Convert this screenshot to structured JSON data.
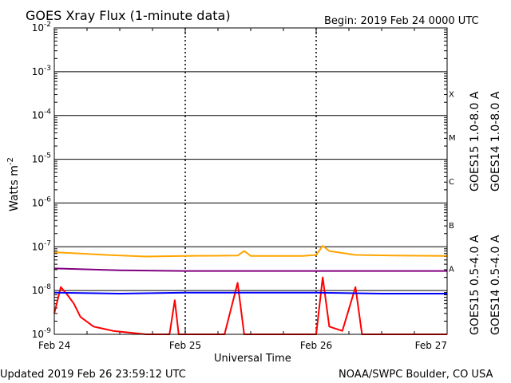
{
  "header": {
    "title": "GOES Xray Flux (1-minute data)",
    "begin_label": "Begin:  2019 Feb 24 0000 UTC"
  },
  "footer": {
    "updated": "Updated 2019 Feb 26 23:59:12 UTC",
    "credit": "NOAA/SWPC Boulder, CO USA"
  },
  "chart_data": {
    "type": "line",
    "title": "GOES Xray Flux (1-minute data)",
    "xlabel": "Universal Time",
    "ylabel": "Watts m",
    "ylabel_sup": "-2",
    "scale": "log",
    "ylim": [
      1e-09,
      0.01
    ],
    "xlim": [
      "Feb 24",
      "Feb 27"
    ],
    "x_ticks": [
      {
        "day": 0,
        "label": "Feb 24"
      },
      {
        "day": 1,
        "label": "Feb 25"
      },
      {
        "day": 2,
        "label": "Feb 26"
      },
      {
        "day": 3,
        "label": "Feb 27"
      }
    ],
    "y_ticks": [
      {
        "exp": -9,
        "base": "10",
        "sup": "-9"
      },
      {
        "exp": -8,
        "base": "10",
        "sup": "-8"
      },
      {
        "exp": -7,
        "base": "10",
        "sup": "-7"
      },
      {
        "exp": -6,
        "base": "10",
        "sup": "-6"
      },
      {
        "exp": -5,
        "base": "10",
        "sup": "-5"
      },
      {
        "exp": -4,
        "base": "10",
        "sup": "-4"
      },
      {
        "exp": -3,
        "base": "10",
        "sup": "-3"
      },
      {
        "exp": -2,
        "base": "10",
        "sup": "-2"
      }
    ],
    "flare_classes": [
      {
        "label": "A",
        "exp": -7.5
      },
      {
        "label": "B",
        "exp": -6.5
      },
      {
        "label": "C",
        "exp": -5.5
      },
      {
        "label": "M",
        "exp": -4.5
      },
      {
        "label": "X",
        "exp": -3.5
      }
    ],
    "grid": true,
    "legend_placement": "right",
    "series": [
      {
        "name": "GOES15 1.0-8.0 A",
        "color": "#ff0000",
        "points": [
          [
            0,
            3e-09
          ],
          [
            0.05,
            1.2e-08
          ],
          [
            0.1,
            8e-09
          ],
          [
            0.15,
            5e-09
          ],
          [
            0.2,
            2.5e-09
          ],
          [
            0.3,
            1.5e-09
          ],
          [
            0.45,
            1.2e-09
          ],
          [
            0.7,
            1e-09
          ],
          [
            0.88,
            1e-09
          ],
          [
            0.92,
            6e-09
          ],
          [
            0.95,
            1e-09
          ],
          [
            1.3,
            1e-09
          ],
          [
            1.4,
            1.5e-08
          ],
          [
            1.45,
            1e-09
          ],
          [
            2.0,
            1e-09
          ],
          [
            2.05,
            2e-08
          ],
          [
            2.1,
            1.5e-09
          ],
          [
            2.2,
            1.2e-09
          ],
          [
            2.3,
            1.2e-08
          ],
          [
            2.35,
            1e-09
          ],
          [
            2.5,
            1e-09
          ],
          [
            3,
            1e-09
          ]
        ]
      },
      {
        "name": "GOES14 1.0-8.0 A",
        "color": "#ffa500",
        "points": [
          [
            0,
            7.5e-08
          ],
          [
            0.2,
            7e-08
          ],
          [
            0.4,
            6.5e-08
          ],
          [
            0.7,
            6e-08
          ],
          [
            1.0,
            6.2e-08
          ],
          [
            1.4,
            6.3e-08
          ],
          [
            1.45,
            8e-08
          ],
          [
            1.5,
            6.2e-08
          ],
          [
            1.9,
            6.2e-08
          ],
          [
            2.0,
            6.5e-08
          ],
          [
            2.05,
            1.05e-07
          ],
          [
            2.1,
            8e-08
          ],
          [
            2.3,
            6.5e-08
          ],
          [
            2.6,
            6.3e-08
          ],
          [
            3,
            6.2e-08
          ]
        ]
      },
      {
        "name": "GOES15 0.5-4.0 A",
        "color": "#0000ff",
        "points": [
          [
            0,
            9e-09
          ],
          [
            0.5,
            8.5e-09
          ],
          [
            1.0,
            9e-09
          ],
          [
            1.5,
            9e-09
          ],
          [
            2.0,
            9e-09
          ],
          [
            2.5,
            8.5e-09
          ],
          [
            3,
            8.5e-09
          ]
        ]
      },
      {
        "name": "GOES14 0.5-4.0 A",
        "color": "#800080",
        "points": [
          [
            0,
            3.2e-08
          ],
          [
            0.5,
            2.9e-08
          ],
          [
            1.0,
            2.8e-08
          ],
          [
            1.5,
            2.8e-08
          ],
          [
            2.0,
            2.8e-08
          ],
          [
            2.5,
            2.8e-08
          ],
          [
            3,
            2.8e-08
          ]
        ]
      }
    ]
  }
}
